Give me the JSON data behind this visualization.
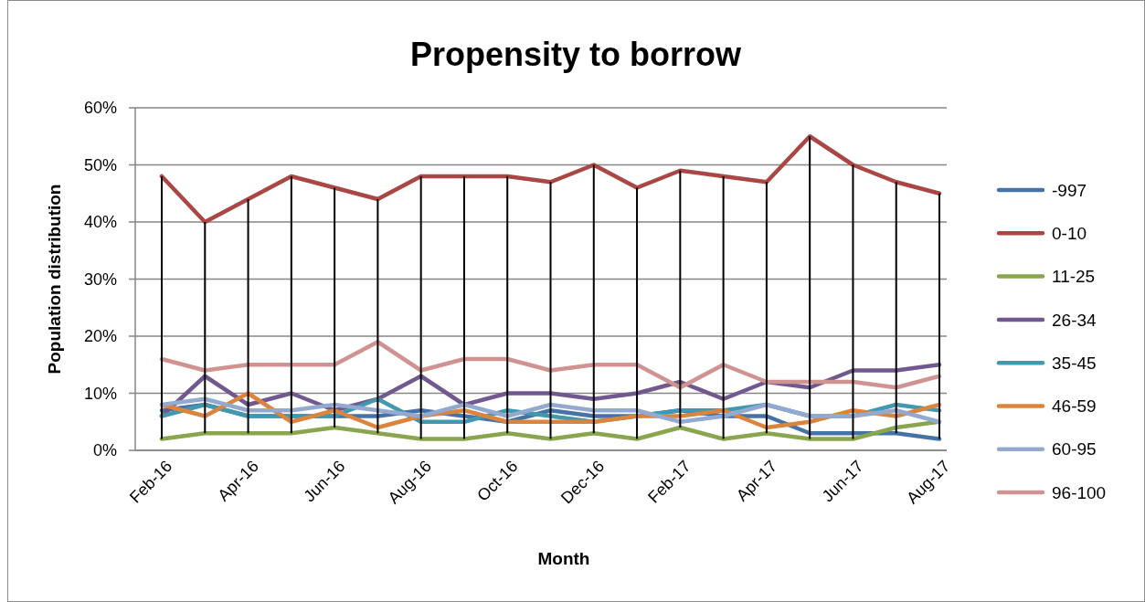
{
  "chart_data": {
    "type": "line",
    "title": "Propensity to borrow",
    "xlabel": "Month",
    "ylabel": "Population distribution",
    "categories": [
      "Feb-16",
      null,
      "Apr-16",
      null,
      "Jun-16",
      null,
      "Aug-16",
      null,
      "Oct-16",
      null,
      "Dec-16",
      null,
      "Feb-17",
      null,
      "Apr-17",
      null,
      "Jun-17",
      null,
      "Aug-17"
    ],
    "series": [
      {
        "name": "-997",
        "color": "#4572a7",
        "values": [
          7,
          8,
          6,
          6,
          6,
          6,
          7,
          6,
          5,
          7,
          6,
          6,
          7,
          6,
          6,
          3,
          3,
          3,
          2
        ]
      },
      {
        "name": "0-10",
        "color": "#aa4643",
        "values": [
          48,
          40,
          44,
          48,
          46,
          44,
          48,
          48,
          48,
          47,
          50,
          46,
          49,
          48,
          47,
          55,
          50,
          47,
          45
        ],
        "errors": [
          [
            2,
            48
          ],
          [
            3,
            40
          ],
          [
            3,
            44
          ],
          [
            3,
            48
          ],
          [
            4,
            46
          ],
          [
            3,
            44
          ],
          [
            2,
            48
          ],
          [
            2,
            48
          ],
          [
            3,
            48
          ],
          [
            2,
            47
          ],
          [
            3,
            50
          ],
          [
            2,
            46
          ],
          [
            4,
            49
          ],
          [
            2,
            48
          ],
          [
            3,
            47
          ],
          [
            2,
            55
          ],
          [
            2,
            50
          ],
          [
            3,
            47
          ],
          [
            2,
            45
          ]
        ]
      },
      {
        "name": "11-25",
        "color": "#89a54e",
        "values": [
          2,
          3,
          3,
          3,
          4,
          3,
          2,
          2,
          3,
          2,
          3,
          2,
          4,
          2,
          3,
          2,
          2,
          4,
          5
        ]
      },
      {
        "name": "26-34",
        "color": "#71588f",
        "values": [
          6,
          13,
          8,
          10,
          7,
          9,
          13,
          8,
          10,
          10,
          9,
          10,
          12,
          9,
          12,
          11,
          14,
          14,
          15
        ]
      },
      {
        "name": "35-45",
        "color": "#4198af",
        "values": [
          6,
          8,
          6,
          6,
          6,
          9,
          5,
          5,
          7,
          6,
          5,
          6,
          7,
          7,
          8,
          6,
          6,
          8,
          7
        ]
      },
      {
        "name": "46-59",
        "color": "#db843d",
        "values": [
          8,
          6,
          10,
          5,
          7,
          4,
          6,
          7,
          5,
          5,
          5,
          6,
          6,
          7,
          4,
          5,
          7,
          6,
          8
        ]
      },
      {
        "name": "60-95",
        "color": "#93a9cf",
        "values": [
          8,
          9,
          7,
          7,
          8,
          7,
          6,
          8,
          6,
          8,
          7,
          7,
          5,
          6,
          8,
          6,
          6,
          7,
          5
        ]
      },
      {
        "name": "96-100",
        "color": "#d19392",
        "values": [
          16,
          14,
          15,
          15,
          15,
          19,
          14,
          16,
          16,
          14,
          15,
          15,
          11,
          15,
          12,
          12,
          12,
          11,
          13
        ]
      }
    ],
    "ylim": [
      0,
      60
    ],
    "yticks": [
      {
        "value": 0,
        "label": "0%"
      },
      {
        "value": 10,
        "label": "10%"
      },
      {
        "value": 20,
        "label": "20%"
      },
      {
        "value": 30,
        "label": "30%"
      },
      {
        "value": 40,
        "label": "40%"
      },
      {
        "value": 50,
        "label": "50%"
      },
      {
        "value": 60,
        "label": "60%"
      }
    ],
    "grid": "y",
    "legend": "right"
  }
}
